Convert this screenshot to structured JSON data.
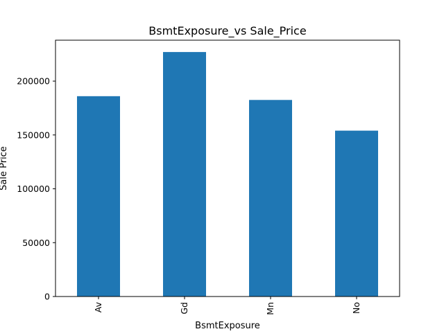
{
  "chart_data": {
    "type": "bar",
    "title": "BsmtExposure_vs Sale_Price",
    "xlabel": "BsmtExposure",
    "ylabel": "Sale Price",
    "categories": [
      "Av",
      "Gd",
      "Mn",
      "No"
    ],
    "values": [
      186000,
      227000,
      182500,
      154000
    ],
    "ylim": [
      0,
      238000
    ],
    "yticks": [
      0,
      50000,
      100000,
      150000,
      200000
    ],
    "ytick_labels": [
      "0",
      "50000",
      "100000",
      "150000",
      "200000"
    ],
    "bar_color": "#1f77b4",
    "grid": false,
    "legend": false
  }
}
